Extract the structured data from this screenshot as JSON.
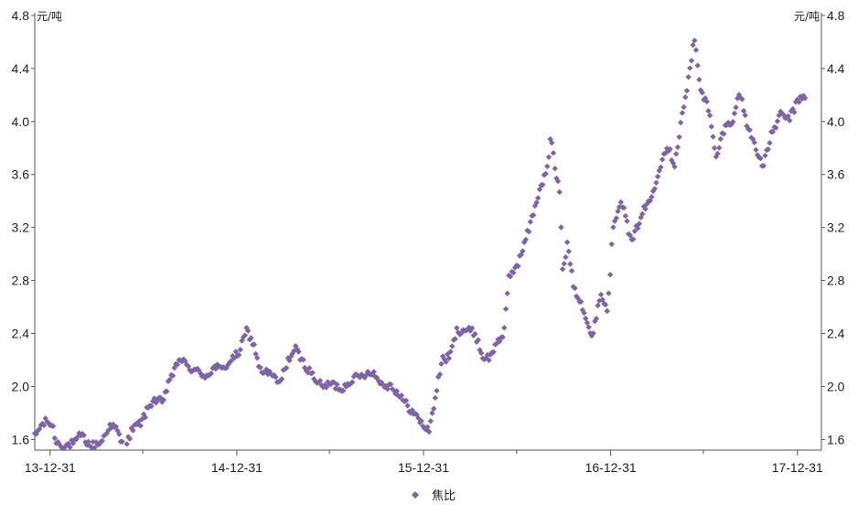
{
  "chart_data": {
    "type": "scatter",
    "title": "",
    "xlabel": "",
    "ylabel_left_unit": "元/吨",
    "ylabel_right_unit": "元/吨",
    "ylim": [
      1.52,
      4.82
    ],
    "y_ticks": [
      "1.6",
      "2.0",
      "2.4",
      "2.8",
      "3.2",
      "3.6",
      "4.0",
      "4.4",
      "4.8"
    ],
    "x_range": [
      "2013-12-01",
      "2018-02-16"
    ],
    "x_ticks": [
      "13-12-31",
      "14-12-31",
      "15-12-31",
      "16-12-31",
      "17-12-31"
    ],
    "legend_position": "bottom-center",
    "grid": false,
    "marker": "diamond",
    "colors": {
      "series": "#7f63a8"
    },
    "series": [
      {
        "name": "焦比",
        "anchors": [
          [
            "2013-12-01",
            1.62
          ],
          [
            "2013-12-12",
            1.7
          ],
          [
            "2013-12-25",
            1.74
          ],
          [
            "2014-01-05",
            1.7
          ],
          [
            "2014-01-12",
            1.58
          ],
          [
            "2014-01-30",
            1.55
          ],
          [
            "2014-02-20",
            1.58
          ],
          [
            "2014-03-01",
            1.64
          ],
          [
            "2014-03-20",
            1.55
          ],
          [
            "2014-04-10",
            1.58
          ],
          [
            "2014-04-25",
            1.7
          ],
          [
            "2014-05-10",
            1.68
          ],
          [
            "2014-05-25",
            1.52
          ],
          [
            "2014-06-10",
            1.68
          ],
          [
            "2014-06-25",
            1.72
          ],
          [
            "2014-07-20",
            1.9
          ],
          [
            "2014-08-10",
            1.88
          ],
          [
            "2014-08-20",
            2.05
          ],
          [
            "2014-09-01",
            2.12
          ],
          [
            "2014-09-10",
            2.22
          ],
          [
            "2014-09-25",
            2.15
          ],
          [
            "2014-10-10",
            2.12
          ],
          [
            "2014-11-01",
            2.08
          ],
          [
            "2014-11-20",
            2.15
          ],
          [
            "2014-12-01",
            2.12
          ],
          [
            "2014-12-20",
            2.2
          ],
          [
            "2015-01-05",
            2.26
          ],
          [
            "2015-01-20",
            2.43
          ],
          [
            "2015-02-05",
            2.28
          ],
          [
            "2015-02-15",
            2.12
          ],
          [
            "2015-03-05",
            2.1
          ],
          [
            "2015-03-25",
            2.02
          ],
          [
            "2015-04-10",
            2.2
          ],
          [
            "2015-04-25",
            2.28
          ],
          [
            "2015-05-10",
            2.18
          ],
          [
            "2015-05-25",
            2.1
          ],
          [
            "2015-06-15",
            2.0
          ],
          [
            "2015-07-05",
            2.02
          ],
          [
            "2015-07-25",
            1.98
          ],
          [
            "2015-08-10",
            2.05
          ],
          [
            "2015-09-01",
            2.08
          ],
          [
            "2015-09-20",
            2.12
          ],
          [
            "2015-10-10",
            2.02
          ],
          [
            "2015-11-01",
            2.0
          ],
          [
            "2015-11-20",
            1.9
          ],
          [
            "2016-01-10",
            1.66
          ],
          [
            "2016-01-20",
            1.85
          ],
          [
            "2016-02-05",
            2.2
          ],
          [
            "2016-02-20",
            2.22
          ],
          [
            "2016-03-05",
            2.42
          ],
          [
            "2016-03-25",
            2.43
          ],
          [
            "2016-04-10",
            2.4
          ],
          [
            "2016-04-25",
            2.22
          ],
          [
            "2016-05-10",
            2.22
          ],
          [
            "2016-05-25",
            2.36
          ],
          [
            "2016-06-05",
            2.38
          ],
          [
            "2016-06-15",
            2.82
          ],
          [
            "2016-07-05",
            2.95
          ],
          [
            "2016-07-25",
            3.2
          ],
          [
            "2016-08-15",
            3.5
          ],
          [
            "2016-08-28",
            3.62
          ],
          [
            "2016-09-05",
            3.88
          ],
          [
            "2016-09-15",
            3.6
          ],
          [
            "2016-09-22",
            3.48
          ],
          [
            "2016-09-28",
            2.88
          ],
          [
            "2016-10-08",
            3.08
          ],
          [
            "2016-10-20",
            2.75
          ],
          [
            "2016-11-05",
            2.62
          ],
          [
            "2016-11-25",
            2.35
          ],
          [
            "2016-12-10",
            2.7
          ],
          [
            "2016-12-25",
            2.58
          ],
          [
            "2017-01-05",
            3.22
          ],
          [
            "2017-01-20",
            3.42
          ],
          [
            "2017-02-10",
            3.08
          ],
          [
            "2017-03-01",
            3.3
          ],
          [
            "2017-03-20",
            3.42
          ],
          [
            "2017-04-05",
            3.65
          ],
          [
            "2017-04-20",
            3.82
          ],
          [
            "2017-05-05",
            3.68
          ],
          [
            "2017-05-20",
            4.05
          ],
          [
            "2017-06-05",
            4.4
          ],
          [
            "2017-06-12",
            4.64
          ],
          [
            "2017-06-25",
            4.25
          ],
          [
            "2017-07-10",
            4.1
          ],
          [
            "2017-07-25",
            3.72
          ],
          [
            "2017-08-10",
            3.95
          ],
          [
            "2017-08-25",
            4.0
          ],
          [
            "2017-09-10",
            4.22
          ],
          [
            "2017-09-25",
            3.95
          ],
          [
            "2017-10-10",
            3.82
          ],
          [
            "2017-10-25",
            3.65
          ],
          [
            "2017-11-10",
            3.9
          ],
          [
            "2017-11-28",
            4.05
          ],
          [
            "2017-12-15",
            4.02
          ],
          [
            "2018-01-05",
            4.18
          ],
          [
            "2018-01-15",
            4.2
          ]
        ]
      }
    ]
  }
}
